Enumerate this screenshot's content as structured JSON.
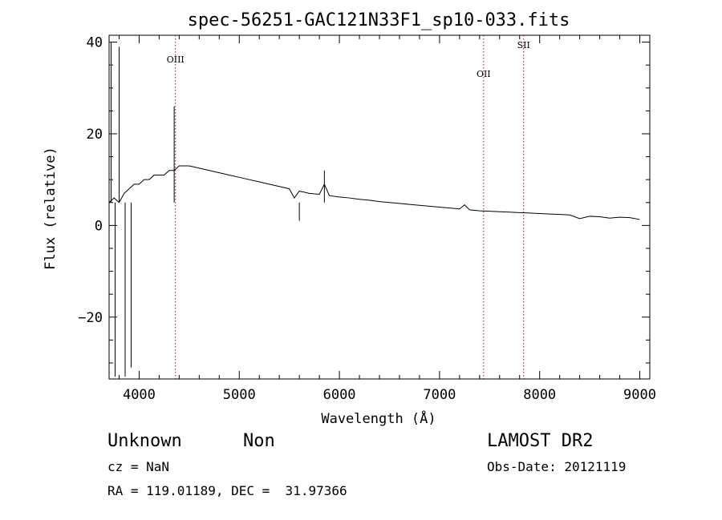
{
  "chart_data": {
    "type": "line",
    "title": "spec-56251-GAC121N33F1_sp10-033.fits",
    "xlabel": "Wavelength (Å)",
    "ylabel": "Flux (relative)",
    "xlim": [
      3700,
      9100
    ],
    "ylim": [
      -33.5,
      41.5
    ],
    "xticks": [
      4000,
      5000,
      6000,
      7000,
      8000,
      9000
    ],
    "yticks": [
      -20,
      0,
      20,
      40
    ],
    "xtick_labels": [
      "4000",
      "5000",
      "6000",
      "7000",
      "8000",
      "9000"
    ],
    "ytick_labels": [
      "−20",
      "0",
      "20",
      "40"
    ],
    "grid": false,
    "series": [
      {
        "color": "#000000",
        "x": [
          3700,
          3750,
          3800,
          3850,
          3900,
          3950,
          4000,
          4050,
          4100,
          4150,
          4200,
          4250,
          4300,
          4350,
          4400,
          4450,
          4500,
          4600,
          4700,
          4800,
          4900,
          5000,
          5100,
          5200,
          5300,
          5400,
          5500,
          5550,
          5600,
          5700,
          5800,
          5850,
          5900,
          6000,
          6100,
          6200,
          6300,
          6400,
          6500,
          6600,
          6700,
          6800,
          6900,
          7000,
          7100,
          7200,
          7250,
          7300,
          7400,
          7500,
          7600,
          7700,
          7800,
          7900,
          8000,
          8100,
          8200,
          8300,
          8400,
          8500,
          8600,
          8700,
          8800,
          8900,
          9000
        ],
        "y": [
          5,
          6,
          5,
          7,
          8,
          9,
          9,
          10,
          10,
          11,
          11,
          11,
          12,
          12,
          13,
          13,
          13,
          12.5,
          12,
          11.5,
          11,
          10.5,
          10,
          9.5,
          9,
          8.5,
          8,
          6,
          7.5,
          7,
          6.8,
          9,
          6.5,
          6.2,
          6,
          5.7,
          5.5,
          5.2,
          5,
          4.8,
          4.6,
          4.4,
          4.2,
          4,
          3.8,
          3.6,
          4.5,
          3.4,
          3.2,
          3.1,
          3,
          2.9,
          2.8,
          2.7,
          2.6,
          2.5,
          2.4,
          2.3,
          1.5,
          2,
          1.9,
          1.6,
          1.8,
          1.7,
          1.3
        ],
        "spikes": [
          {
            "x": 3720,
            "y": 40
          },
          {
            "x": 3760,
            "y": -33
          },
          {
            "x": 3800,
            "y": 39
          },
          {
            "x": 3860,
            "y": -33
          },
          {
            "x": 3920,
            "y": -31
          },
          {
            "x": 4350,
            "y": 26
          },
          {
            "x": 5600,
            "y": 1
          },
          {
            "x": 5850,
            "y": 12
          }
        ]
      }
    ],
    "annotations": [
      {
        "label": "OIII",
        "x": 4363,
        "style": "dotted",
        "color": "#8b1a1a"
      },
      {
        "label": "OII",
        "x": 7440,
        "style": "dotted",
        "color": "#8b1a1a"
      },
      {
        "label": "SII",
        "x": 7840,
        "style": "dotted",
        "color": "#8b1a1a"
      }
    ]
  },
  "info": {
    "class_label": "Unknown",
    "subclass_label": "Non",
    "cz_text": "cz = NaN",
    "coords_text": "RA = 119.01189, DEC =  31.97366",
    "survey_label": "LAMOST DR2",
    "obs_date_text": "Obs-Date: 20121119"
  }
}
